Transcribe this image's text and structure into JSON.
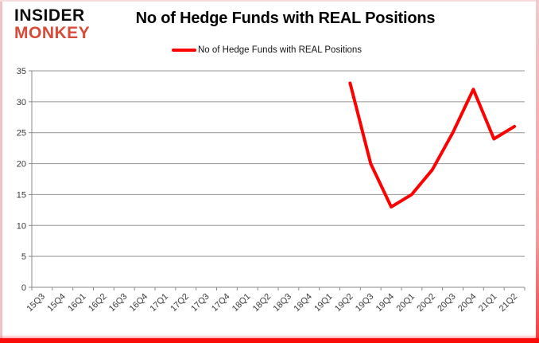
{
  "header": {
    "logo_line1": "INSIDER",
    "logo_line2": "MONKEY",
    "title": "No of Hedge Funds with REAL Positions"
  },
  "legend": {
    "label": "No of Hedge Funds with REAL Positions",
    "color": "#fe0000"
  },
  "chart_data": {
    "type": "line",
    "title": "No of Hedge Funds with REAL Positions",
    "categories": [
      "15Q3",
      "15Q4",
      "16Q1",
      "16Q2",
      "16Q3",
      "16Q4",
      "17Q1",
      "17Q2",
      "17Q3",
      "17Q4",
      "18Q1",
      "18Q2",
      "18Q3",
      "18Q4",
      "19Q1",
      "19Q2",
      "19Q3",
      "19Q4",
      "20Q1",
      "20Q2",
      "20Q3",
      "20Q4",
      "21Q1",
      "21Q2"
    ],
    "series": [
      {
        "name": "No of Hedge Funds with REAL Positions",
        "color": "#fe0000",
        "values": [
          null,
          null,
          null,
          null,
          null,
          null,
          null,
          null,
          null,
          null,
          null,
          null,
          null,
          null,
          null,
          33,
          20,
          13,
          15,
          19,
          25,
          32,
          24,
          26
        ]
      }
    ],
    "ylim": [
      0,
      35
    ],
    "ytick_step": 5,
    "yticks": [
      0,
      5,
      10,
      15,
      20,
      25,
      30,
      35
    ],
    "grid": true,
    "legend_position": "top",
    "xlabel": "",
    "ylabel": ""
  }
}
